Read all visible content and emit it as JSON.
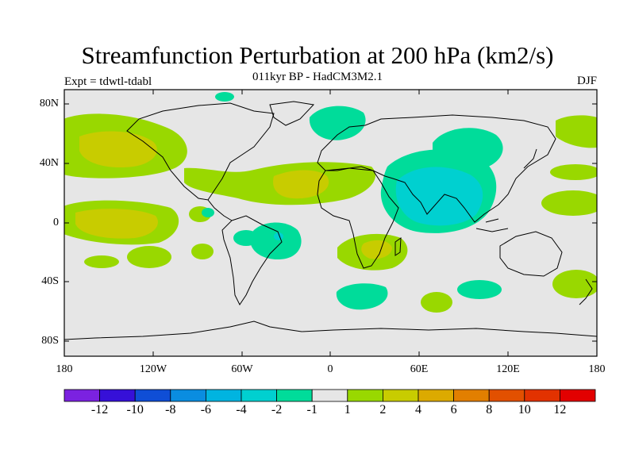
{
  "title": "Streamfunction Perturbation at 200 hPa (km2/s)",
  "subtitle": "011kyr BP - HadCM3M2.1",
  "left_label": "Expt = tdwtl-tdabl",
  "right_label": "DJF",
  "chart_data": {
    "type": "map",
    "title": "Streamfunction Perturbation at 200 hPa (km2/s)",
    "subtitle": "011kyr BP - HadCM3M2.1",
    "experiment": "Expt = tdwtl-tdabl",
    "season": "DJF",
    "projection": "cylindrical equidistant",
    "lon_range": [
      -180,
      180
    ],
    "lat_range": [
      -90,
      90
    ],
    "lat_ticks": [
      "80N",
      "40N",
      "0",
      "40S",
      "80S"
    ],
    "lon_ticks": [
      "180",
      "120W",
      "60W",
      "0",
      "60E",
      "120E",
      "180"
    ],
    "colorbar": {
      "labels": [
        "-12",
        "-10",
        "-8",
        "-6",
        "-4",
        "-2",
        "-1",
        "1",
        "2",
        "4",
        "6",
        "8",
        "10",
        "12"
      ],
      "colors": [
        "#7b22e0",
        "#3610d8",
        "#0f4ed6",
        "#0a8de0",
        "#00b4e0",
        "#00d0d0",
        "#00dc9a",
        "#e6e6e6",
        "#99d800",
        "#c8cc00",
        "#dcaa00",
        "#e27f00",
        "#e25000",
        "#e23200",
        "#e20000"
      ]
    },
    "features": [
      {
        "name": "N Pacific anticyclone",
        "lon": -142,
        "lat": 48,
        "value_range": [
          2,
          4
        ]
      },
      {
        "name": "Tropical E Pacific",
        "lon": -155,
        "lat": 5,
        "value_range": [
          2,
          4
        ]
      },
      {
        "name": "Subtropical N Atlantic",
        "lon": -18,
        "lat": 25,
        "value_range": [
          2,
          4
        ]
      },
      {
        "name": "S Africa",
        "lon": 35,
        "lat": -18,
        "value_range": [
          2,
          4
        ]
      },
      {
        "name": "S Pacific",
        "lon": 165,
        "lat": -42,
        "value_range": [
          1,
          2
        ]
      },
      {
        "name": "S Indian Ocean",
        "lon": 70,
        "lat": -52,
        "value_range": [
          1,
          2
        ]
      },
      {
        "name": "Asia monsoon cyclone",
        "lon": 70,
        "lat": 18,
        "value_range": [
          -4,
          -2
        ]
      },
      {
        "name": "N Eurasia",
        "lon": 25,
        "lat": 65,
        "value_range": [
          -2,
          -1
        ]
      },
      {
        "name": "Central Asia",
        "lon": 95,
        "lat": 45,
        "value_range": [
          -2,
          -1
        ]
      },
      {
        "name": "Tropical S Atlantic",
        "lon": -35,
        "lat": -8,
        "value_range": [
          -4,
          -2
        ]
      },
      {
        "name": "SE Pacific",
        "lon": -110,
        "lat": -24,
        "value_range": [
          -2,
          -1
        ]
      },
      {
        "name": "SW Indian Ocean",
        "lon": 30,
        "lat": -50,
        "value_range": [
          -2,
          -1
        ]
      }
    ]
  }
}
